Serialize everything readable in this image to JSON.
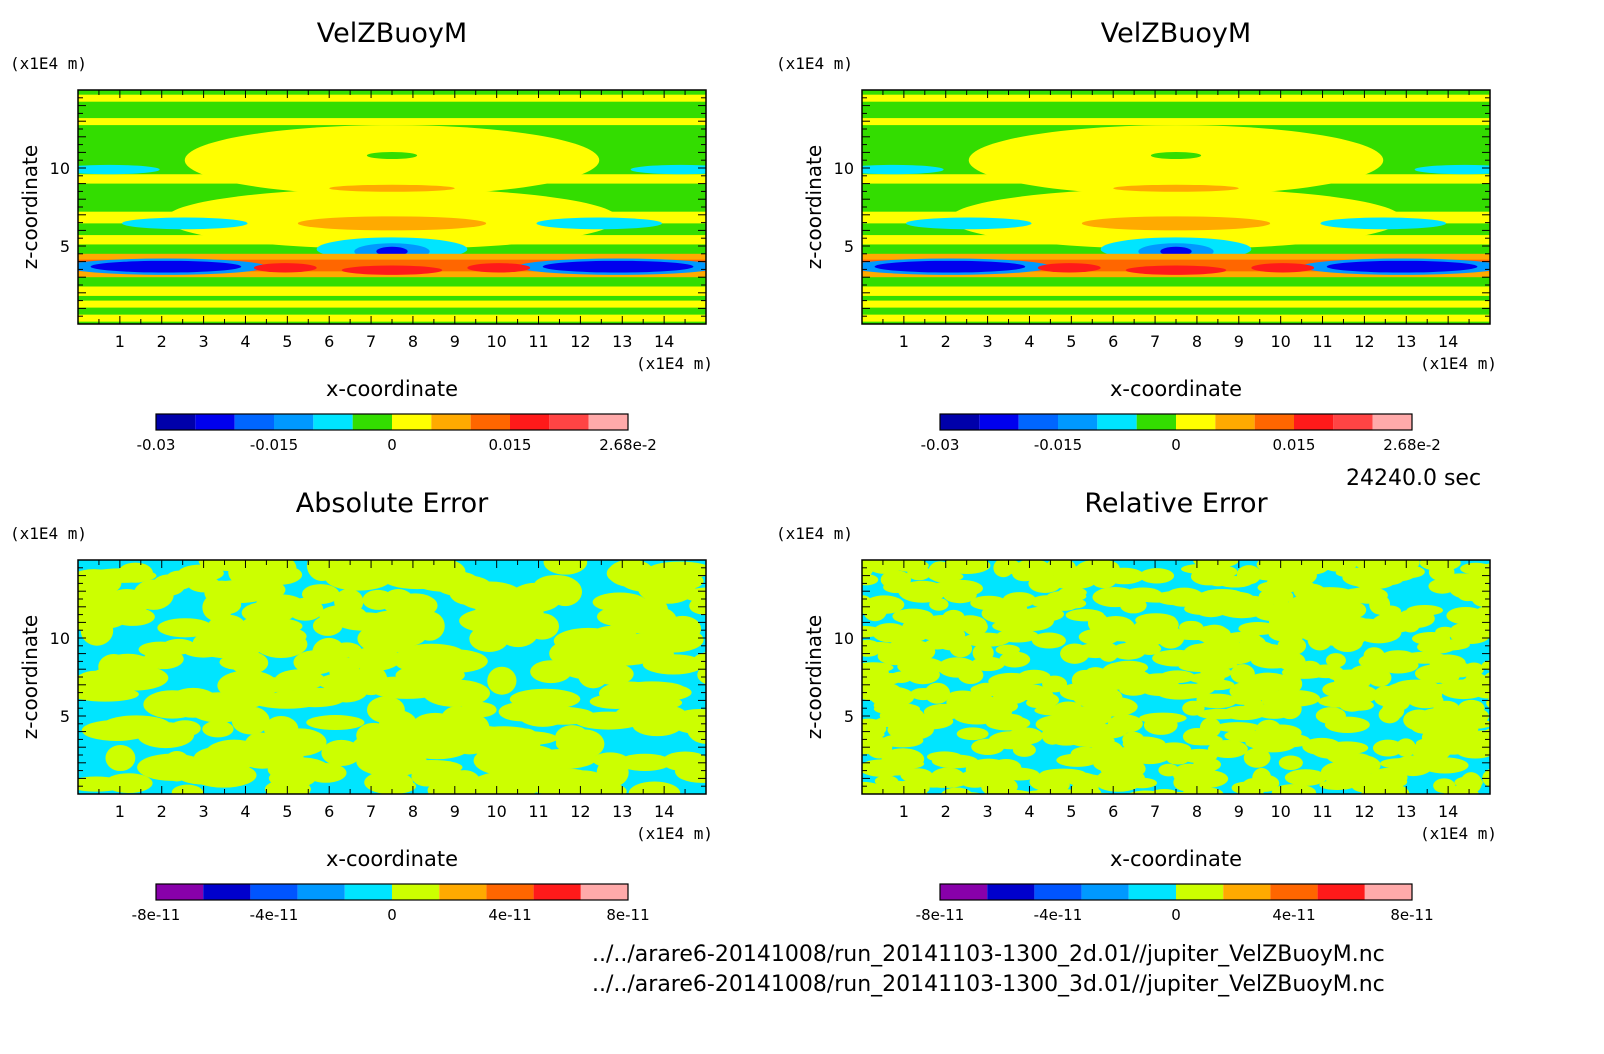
{
  "chart_data": [
    {
      "type": "heatmap",
      "title": "VelZBuoyM",
      "xlabel": "x-coordinate",
      "ylabel": "z-coordinate",
      "x_unit": "(x1E4 m)",
      "y_unit": "(x1E4 m)",
      "xlim": [
        0,
        15
      ],
      "ylim": [
        0,
        15
      ],
      "x_ticks": [
        "1",
        "2",
        "3",
        "4",
        "5",
        "6",
        "7",
        "8",
        "9",
        "10",
        "11",
        "12",
        "13",
        "14"
      ],
      "y_ticks": [
        "5",
        "10"
      ],
      "colorbar": {
        "ticks": [
          "-0.03",
          "-0.015",
          "0",
          "0.015",
          "2.68e-2"
        ],
        "colors": [
          "#0000aa",
          "#0000ee",
          "#0066ff",
          "#0099ff",
          "#00e5ff",
          "#33dd00",
          "#ffff00",
          "#ffaa00",
          "#ff6600",
          "#ff1a1a",
          "#ff4444",
          "#ffaaaa"
        ]
      }
    },
    {
      "type": "heatmap",
      "title": "VelZBuoyM",
      "xlabel": "x-coordinate",
      "ylabel": "z-coordinate",
      "x_unit": "(x1E4 m)",
      "y_unit": "(x1E4 m)",
      "xlim": [
        0,
        15
      ],
      "ylim": [
        0,
        15
      ],
      "x_ticks": [
        "1",
        "2",
        "3",
        "4",
        "5",
        "6",
        "7",
        "8",
        "9",
        "10",
        "11",
        "12",
        "13",
        "14"
      ],
      "y_ticks": [
        "5",
        "10"
      ],
      "colorbar": {
        "ticks": [
          "-0.03",
          "-0.015",
          "0",
          "0.015",
          "2.68e-2"
        ],
        "colors": [
          "#0000aa",
          "#0000ee",
          "#0066ff",
          "#0099ff",
          "#00e5ff",
          "#33dd00",
          "#ffff00",
          "#ffaa00",
          "#ff6600",
          "#ff1a1a",
          "#ff4444",
          "#ffaaaa"
        ]
      }
    },
    {
      "type": "heatmap",
      "title": "Absolute Error",
      "xlabel": "x-coordinate",
      "ylabel": "z-coordinate",
      "x_unit": "(x1E4 m)",
      "y_unit": "(x1E4 m)",
      "xlim": [
        0,
        15
      ],
      "ylim": [
        0,
        15
      ],
      "x_ticks": [
        "1",
        "2",
        "3",
        "4",
        "5",
        "6",
        "7",
        "8",
        "9",
        "10",
        "11",
        "12",
        "13",
        "14"
      ],
      "y_ticks": [
        "5",
        "10"
      ],
      "colorbar": {
        "ticks": [
          "-8e-11",
          "-4e-11",
          "0",
          "4e-11",
          "8e-11"
        ],
        "colors": [
          "#8800aa",
          "#0000cc",
          "#0055ff",
          "#0099ff",
          "#00e5ff",
          "#ccff00",
          "#ffaa00",
          "#ff6600",
          "#ff1a1a",
          "#ffaaaa"
        ]
      }
    },
    {
      "type": "heatmap",
      "title": "Relative Error",
      "xlabel": "x-coordinate",
      "ylabel": "z-coordinate",
      "x_unit": "(x1E4 m)",
      "y_unit": "(x1E4 m)",
      "xlim": [
        0,
        15
      ],
      "ylim": [
        0,
        15
      ],
      "x_ticks": [
        "1",
        "2",
        "3",
        "4",
        "5",
        "6",
        "7",
        "8",
        "9",
        "10",
        "11",
        "12",
        "13",
        "14"
      ],
      "y_ticks": [
        "5",
        "10"
      ],
      "colorbar": {
        "ticks": [
          "-8e-11",
          "-4e-11",
          "0",
          "4e-11",
          "8e-11"
        ],
        "colors": [
          "#8800aa",
          "#0000cc",
          "#0055ff",
          "#0099ff",
          "#00e5ff",
          "#ccff00",
          "#ffaa00",
          "#ff6600",
          "#ff1a1a",
          "#ffaaaa"
        ]
      }
    }
  ],
  "timestamp": "24240.0 sec",
  "files": [
    "../../arare6-20141008/run_20141103-1300_2d.01//jupiter_VelZBuoyM.nc",
    "../../arare6-20141008/run_20141103-1300_3d.01//jupiter_VelZBuoyM.nc"
  ]
}
